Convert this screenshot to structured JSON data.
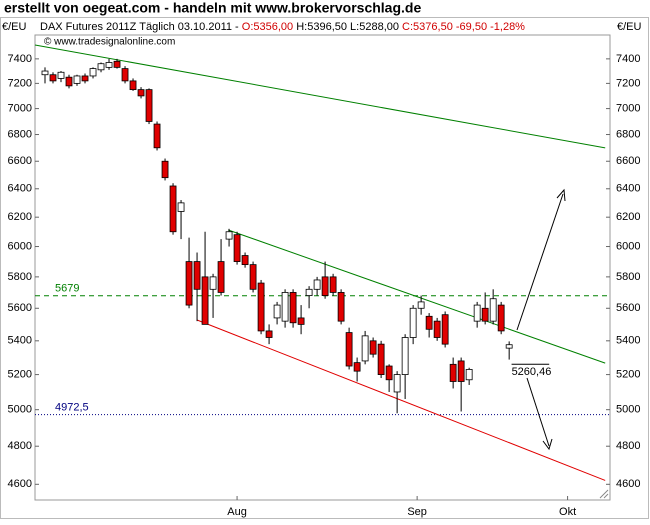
{
  "chart_data": {
    "type": "candlestick",
    "title": "erstellt von oegeat.com - handeln mit www.brokervorschlag.de",
    "subtitle": [
      {
        "text": "DAX Futures 2011Z Täglich  03.10.2011 - ",
        "color": "#000000"
      },
      {
        "text": "O:5356,00 ",
        "color": "#d00000"
      },
      {
        "text": "H:5396,50 ",
        "color": "#000000"
      },
      {
        "text": "L:5288,00 ",
        "color": "#000000"
      },
      {
        "text": "C:5376,50 -69,50 -1,28%",
        "color": "#d00000"
      }
    ],
    "source": "© www.tradesignalonline.com",
    "y_axis_label": "€/EU",
    "log_scale": true,
    "ylim": [
      4520,
      7600
    ],
    "yticks": [
      4600,
      4800,
      5000,
      5200,
      5400,
      5600,
      5800,
      6000,
      6200,
      6400,
      6600,
      6800,
      7000,
      7200,
      7400
    ],
    "xlim": [
      -1.25,
      70.6
    ],
    "xticks": [
      {
        "value": 24,
        "label": "Aug"
      },
      {
        "value": 46.5,
        "label": "Sep"
      },
      {
        "value": 65.3,
        "label": "Okt"
      }
    ],
    "up_color": "#ffffff",
    "down_color": "#e00000",
    "open": [
      7270,
      7270,
      7240,
      7250,
      7200,
      7260,
      7260,
      7310,
      7330,
      7380,
      7320,
      7220,
      7150,
      7150,
      6880,
      6600,
      6420,
      6240,
      5900,
      5900,
      5800,
      5720,
      5900,
      6050,
      6080,
      5940,
      5880,
      5760,
      5460,
      5540,
      5520,
      5700,
      5540,
      5680,
      5720,
      5800,
      5800,
      5700,
      5450,
      5270,
      5280,
      5400,
      5380,
      5250,
      5100,
      5200,
      5420,
      5600,
      5550,
      5520,
      5560,
      5260,
      5280,
      5170,
      5520,
      5600,
      5520,
      5620,
      5356
    ],
    "high": [
      7330,
      7290,
      7300,
      7270,
      7270,
      7280,
      7330,
      7370,
      7400,
      7400,
      7340,
      7240,
      7170,
      7160,
      6900,
      6620,
      6440,
      6320,
      6060,
      5960,
      6100,
      5820,
      6050,
      6120,
      6100,
      5960,
      5900,
      5780,
      5500,
      5640,
      5720,
      5720,
      5620,
      5740,
      5800,
      5900,
      5820,
      5720,
      5480,
      5300,
      5460,
      5420,
      5400,
      5260,
      5220,
      5440,
      5620,
      5680,
      5570,
      5540,
      5580,
      5300,
      5300,
      5240,
      5640,
      5700,
      5720,
      5640,
      5396.5
    ],
    "low": [
      7200,
      7200,
      7210,
      7160,
      7180,
      7200,
      7240,
      7290,
      7310,
      7320,
      7200,
      7140,
      7080,
      6880,
      6680,
      6460,
      6080,
      6050,
      5600,
      5520,
      5500,
      5540,
      5680,
      6000,
      5880,
      5860,
      5700,
      5440,
      5380,
      5500,
      5480,
      5480,
      5440,
      5600,
      5680,
      5660,
      5680,
      5500,
      5230,
      5160,
      5260,
      5300,
      5180,
      5100,
      4980,
      5060,
      5380,
      5560,
      5420,
      5400,
      5360,
      5120,
      4990,
      5140,
      5480,
      5500,
      5500,
      5440,
      5288
    ],
    "close": [
      7300,
      7220,
      7290,
      7180,
      7260,
      7220,
      7320,
      7360,
      7370,
      7330,
      7220,
      7150,
      7100,
      6900,
      6700,
      6480,
      6100,
      6300,
      5620,
      5720,
      5500,
      5800,
      5700,
      6100,
      5900,
      5880,
      5720,
      5460,
      5420,
      5620,
      5700,
      5510,
      5500,
      5720,
      5780,
      5680,
      5700,
      5520,
      5250,
      5220,
      5430,
      5320,
      5200,
      5170,
      5200,
      5420,
      5600,
      5640,
      5470,
      5420,
      5380,
      5160,
      5160,
      5230,
      5620,
      5520,
      5660,
      5460,
      5376.5
    ],
    "trendlines": [
      {
        "color": "#008000",
        "x": [
          -1.25,
          70
        ],
        "y": [
          7516,
          6699
        ]
      },
      {
        "color": "#008000",
        "x": [
          22.9,
          70
        ],
        "y": [
          6112,
          5267
        ]
      },
      {
        "color": "#e00000",
        "x": [
          19,
          70
        ],
        "y": [
          5527,
          4620
        ]
      }
    ],
    "levels": [
      {
        "value": 5679,
        "color": "#008000",
        "dash": "5,4"
      },
      {
        "value": 4972.5,
        "label": "4972,5",
        "color": "#000080",
        "dash": "1,2"
      }
    ],
    "annotation": {
      "value": 5260.46,
      "label": "5260,46",
      "x": [
        58.3,
        63
      ]
    }
  }
}
